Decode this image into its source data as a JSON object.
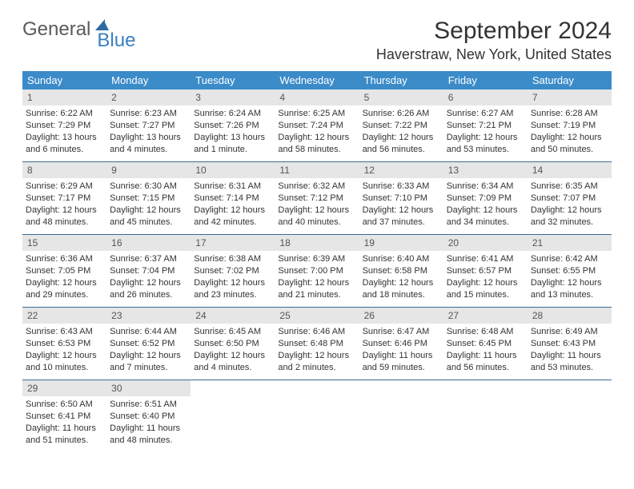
{
  "logo": {
    "text1": "General",
    "text2": "Blue"
  },
  "title": "September 2024",
  "location": "Haverstraw, New York, United States",
  "header_bg": "#3b8bc9",
  "row_divider": "#3b6a94",
  "daynum_bg": "#e6e6e6",
  "days_of_week": [
    "Sunday",
    "Monday",
    "Tuesday",
    "Wednesday",
    "Thursday",
    "Friday",
    "Saturday"
  ],
  "weeks": [
    [
      {
        "n": "1",
        "sr": "Sunrise: 6:22 AM",
        "ss": "Sunset: 7:29 PM",
        "d1": "Daylight: 13 hours",
        "d2": "and 6 minutes."
      },
      {
        "n": "2",
        "sr": "Sunrise: 6:23 AM",
        "ss": "Sunset: 7:27 PM",
        "d1": "Daylight: 13 hours",
        "d2": "and 4 minutes."
      },
      {
        "n": "3",
        "sr": "Sunrise: 6:24 AM",
        "ss": "Sunset: 7:26 PM",
        "d1": "Daylight: 13 hours",
        "d2": "and 1 minute."
      },
      {
        "n": "4",
        "sr": "Sunrise: 6:25 AM",
        "ss": "Sunset: 7:24 PM",
        "d1": "Daylight: 12 hours",
        "d2": "and 58 minutes."
      },
      {
        "n": "5",
        "sr": "Sunrise: 6:26 AM",
        "ss": "Sunset: 7:22 PM",
        "d1": "Daylight: 12 hours",
        "d2": "and 56 minutes."
      },
      {
        "n": "6",
        "sr": "Sunrise: 6:27 AM",
        "ss": "Sunset: 7:21 PM",
        "d1": "Daylight: 12 hours",
        "d2": "and 53 minutes."
      },
      {
        "n": "7",
        "sr": "Sunrise: 6:28 AM",
        "ss": "Sunset: 7:19 PM",
        "d1": "Daylight: 12 hours",
        "d2": "and 50 minutes."
      }
    ],
    [
      {
        "n": "8",
        "sr": "Sunrise: 6:29 AM",
        "ss": "Sunset: 7:17 PM",
        "d1": "Daylight: 12 hours",
        "d2": "and 48 minutes."
      },
      {
        "n": "9",
        "sr": "Sunrise: 6:30 AM",
        "ss": "Sunset: 7:15 PM",
        "d1": "Daylight: 12 hours",
        "d2": "and 45 minutes."
      },
      {
        "n": "10",
        "sr": "Sunrise: 6:31 AM",
        "ss": "Sunset: 7:14 PM",
        "d1": "Daylight: 12 hours",
        "d2": "and 42 minutes."
      },
      {
        "n": "11",
        "sr": "Sunrise: 6:32 AM",
        "ss": "Sunset: 7:12 PM",
        "d1": "Daylight: 12 hours",
        "d2": "and 40 minutes."
      },
      {
        "n": "12",
        "sr": "Sunrise: 6:33 AM",
        "ss": "Sunset: 7:10 PM",
        "d1": "Daylight: 12 hours",
        "d2": "and 37 minutes."
      },
      {
        "n": "13",
        "sr": "Sunrise: 6:34 AM",
        "ss": "Sunset: 7:09 PM",
        "d1": "Daylight: 12 hours",
        "d2": "and 34 minutes."
      },
      {
        "n": "14",
        "sr": "Sunrise: 6:35 AM",
        "ss": "Sunset: 7:07 PM",
        "d1": "Daylight: 12 hours",
        "d2": "and 32 minutes."
      }
    ],
    [
      {
        "n": "15",
        "sr": "Sunrise: 6:36 AM",
        "ss": "Sunset: 7:05 PM",
        "d1": "Daylight: 12 hours",
        "d2": "and 29 minutes."
      },
      {
        "n": "16",
        "sr": "Sunrise: 6:37 AM",
        "ss": "Sunset: 7:04 PM",
        "d1": "Daylight: 12 hours",
        "d2": "and 26 minutes."
      },
      {
        "n": "17",
        "sr": "Sunrise: 6:38 AM",
        "ss": "Sunset: 7:02 PM",
        "d1": "Daylight: 12 hours",
        "d2": "and 23 minutes."
      },
      {
        "n": "18",
        "sr": "Sunrise: 6:39 AM",
        "ss": "Sunset: 7:00 PM",
        "d1": "Daylight: 12 hours",
        "d2": "and 21 minutes."
      },
      {
        "n": "19",
        "sr": "Sunrise: 6:40 AM",
        "ss": "Sunset: 6:58 PM",
        "d1": "Daylight: 12 hours",
        "d2": "and 18 minutes."
      },
      {
        "n": "20",
        "sr": "Sunrise: 6:41 AM",
        "ss": "Sunset: 6:57 PM",
        "d1": "Daylight: 12 hours",
        "d2": "and 15 minutes."
      },
      {
        "n": "21",
        "sr": "Sunrise: 6:42 AM",
        "ss": "Sunset: 6:55 PM",
        "d1": "Daylight: 12 hours",
        "d2": "and 13 minutes."
      }
    ],
    [
      {
        "n": "22",
        "sr": "Sunrise: 6:43 AM",
        "ss": "Sunset: 6:53 PM",
        "d1": "Daylight: 12 hours",
        "d2": "and 10 minutes."
      },
      {
        "n": "23",
        "sr": "Sunrise: 6:44 AM",
        "ss": "Sunset: 6:52 PM",
        "d1": "Daylight: 12 hours",
        "d2": "and 7 minutes."
      },
      {
        "n": "24",
        "sr": "Sunrise: 6:45 AM",
        "ss": "Sunset: 6:50 PM",
        "d1": "Daylight: 12 hours",
        "d2": "and 4 minutes."
      },
      {
        "n": "25",
        "sr": "Sunrise: 6:46 AM",
        "ss": "Sunset: 6:48 PM",
        "d1": "Daylight: 12 hours",
        "d2": "and 2 minutes."
      },
      {
        "n": "26",
        "sr": "Sunrise: 6:47 AM",
        "ss": "Sunset: 6:46 PM",
        "d1": "Daylight: 11 hours",
        "d2": "and 59 minutes."
      },
      {
        "n": "27",
        "sr": "Sunrise: 6:48 AM",
        "ss": "Sunset: 6:45 PM",
        "d1": "Daylight: 11 hours",
        "d2": "and 56 minutes."
      },
      {
        "n": "28",
        "sr": "Sunrise: 6:49 AM",
        "ss": "Sunset: 6:43 PM",
        "d1": "Daylight: 11 hours",
        "d2": "and 53 minutes."
      }
    ],
    [
      {
        "n": "29",
        "sr": "Sunrise: 6:50 AM",
        "ss": "Sunset: 6:41 PM",
        "d1": "Daylight: 11 hours",
        "d2": "and 51 minutes."
      },
      {
        "n": "30",
        "sr": "Sunrise: 6:51 AM",
        "ss": "Sunset: 6:40 PM",
        "d1": "Daylight: 11 hours",
        "d2": "and 48 minutes."
      },
      null,
      null,
      null,
      null,
      null
    ]
  ]
}
